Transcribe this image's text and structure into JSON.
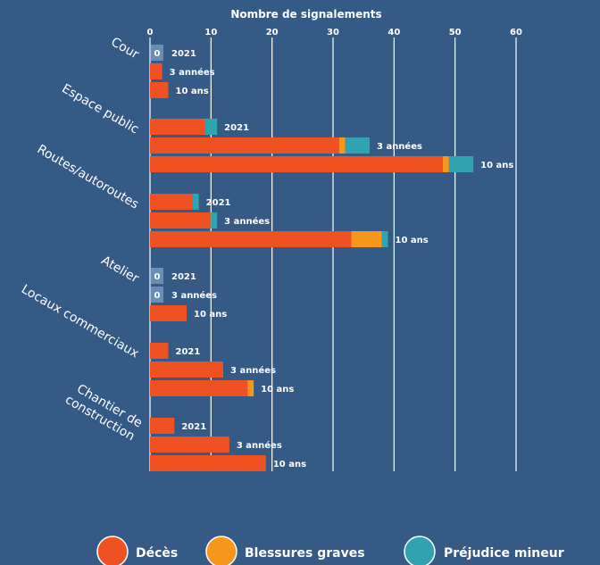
{
  "chart_data": {
    "type": "bar",
    "orientation": "horizontal",
    "stacked": true,
    "xlabel": "Nombre de signalements",
    "xlim": [
      0,
      60
    ],
    "xticks": [
      "0",
      "10",
      "20",
      "30",
      "40",
      "50",
      "60"
    ],
    "grid": true,
    "legend_position": "bottom",
    "series": [
      {
        "name": "Décès",
        "color": "#ef5222"
      },
      {
        "name": "Blessures graves",
        "color": "#f7961d"
      },
      {
        "name": "Préjudice mineur",
        "color": "#2fa4b0"
      }
    ],
    "groups": [
      {
        "label": "Cour",
        "bars": [
          {
            "label": "2021",
            "values": [
              0,
              0,
              0
            ]
          },
          {
            "label": "3 années",
            "values": [
              2,
              0,
              0
            ]
          },
          {
            "label": "10 ans",
            "values": [
              3,
              0,
              0
            ]
          }
        ]
      },
      {
        "label": "Espace public",
        "bars": [
          {
            "label": "2021",
            "values": [
              9,
              0,
              2
            ]
          },
          {
            "label": "3 années",
            "values": [
              31,
              1,
              4
            ]
          },
          {
            "label": "10 ans",
            "values": [
              48,
              1,
              4
            ]
          }
        ]
      },
      {
        "label": "Routes/autoroutes",
        "bars": [
          {
            "label": "2021",
            "values": [
              7,
              0,
              1
            ]
          },
          {
            "label": "3 années",
            "values": [
              10,
              0,
              1
            ]
          },
          {
            "label": "10 ans",
            "values": [
              33,
              5,
              1
            ]
          }
        ]
      },
      {
        "label": "Atelier",
        "bars": [
          {
            "label": "2021",
            "values": [
              0,
              0,
              0
            ]
          },
          {
            "label": "3 années",
            "values": [
              0,
              0,
              0
            ]
          },
          {
            "label": "10 ans",
            "values": [
              6,
              0,
              0
            ]
          }
        ]
      },
      {
        "label": "Locaux commerciaux",
        "bars": [
          {
            "label": "2021",
            "values": [
              3,
              0,
              0
            ]
          },
          {
            "label": "3 années",
            "values": [
              12,
              0,
              0
            ]
          },
          {
            "label": "10 ans",
            "values": [
              16,
              1,
              0
            ]
          }
        ]
      },
      {
        "label": "Chantier de construction",
        "bars": [
          {
            "label": "2021",
            "values": [
              4,
              0,
              0
            ]
          },
          {
            "label": "3 années",
            "values": [
              13,
              0,
              0
            ]
          },
          {
            "label": "10 ans",
            "values": [
              19,
              0,
              0
            ]
          }
        ]
      }
    ],
    "zero_marker": "0"
  }
}
